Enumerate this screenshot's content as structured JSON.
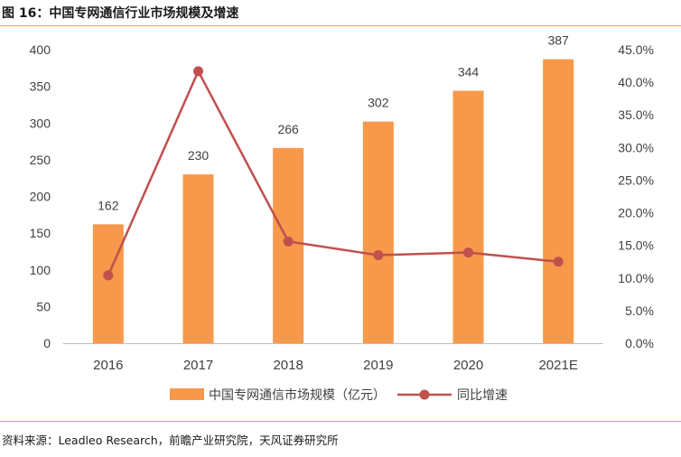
{
  "figure": {
    "title": "图 16：中国专网通信行业市场规模及增速",
    "source": "资料来源：Leadleo Research，前瞻产业研究院，天风证券研究所"
  },
  "colors": {
    "bar": "#f7984a",
    "line": "#c0504d",
    "axis": "#bfbfbf",
    "rule": "#f0a44a",
    "text": "#404040"
  },
  "chart_data": {
    "type": "bar",
    "categories": [
      "2016",
      "2017",
      "2018",
      "2019",
      "2020",
      "2021E"
    ],
    "series": [
      {
        "name": "中国专网通信市场规模（亿元）",
        "type": "bar",
        "axis": "left",
        "values": [
          162,
          230,
          266,
          302,
          344,
          387
        ],
        "labels": [
          "162",
          "230",
          "266",
          "302",
          "344",
          "387"
        ]
      },
      {
        "name": "同比增速",
        "type": "line",
        "axis": "right",
        "values": [
          10.4,
          41.7,
          15.6,
          13.5,
          13.9,
          12.5
        ]
      }
    ],
    "y_left": {
      "min": 0,
      "max": 400,
      "step": 50,
      "ticks": [
        "0",
        "50",
        "100",
        "150",
        "200",
        "250",
        "300",
        "350",
        "400"
      ]
    },
    "y_right": {
      "min": 0,
      "max": 45,
      "step": 5,
      "ticks": [
        "0.0%",
        "5.0%",
        "10.0%",
        "15.0%",
        "20.0%",
        "25.0%",
        "30.0%",
        "35.0%",
        "40.0%",
        "45.0%"
      ]
    },
    "grid": false,
    "legend_position": "bottom"
  }
}
